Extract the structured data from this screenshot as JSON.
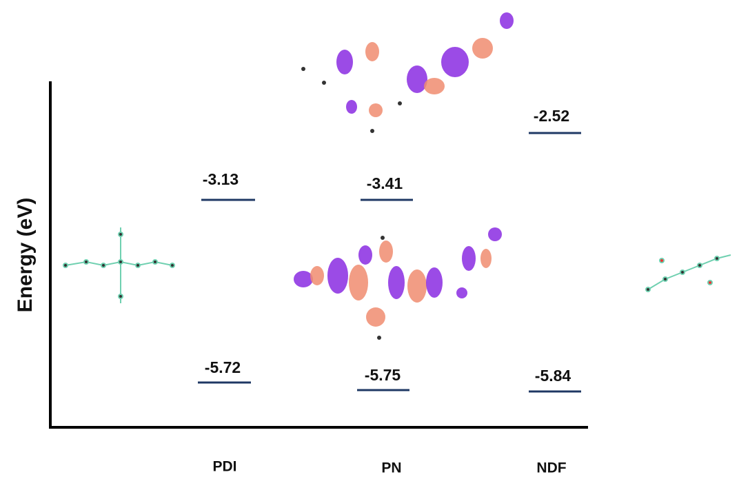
{
  "y_axis": {
    "label": "Energy (eV)"
  },
  "columns": [
    {
      "name": "PDI",
      "lumo": "-3.13",
      "homo": "-5.72"
    },
    {
      "name": "PN",
      "lumo": "-3.41",
      "homo": "-5.75"
    },
    {
      "name": "NDF",
      "lumo": "-2.52",
      "homo": "-5.84"
    }
  ]
}
